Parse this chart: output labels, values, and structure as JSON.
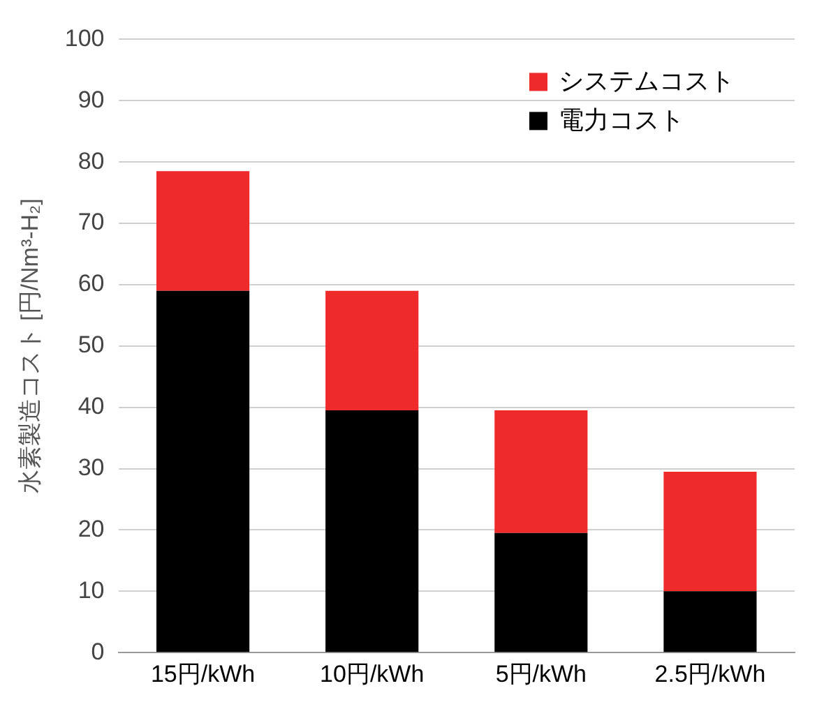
{
  "chart_data": {
    "type": "bar",
    "ylabel": "水素製造コスト [円/Nm³-H₂]",
    "categories": [
      "15円/kWh",
      "10円/kWh",
      "5円/kWh",
      "2.5円/kWh"
    ],
    "stacked": true,
    "series": [
      {
        "name": "電力コスト",
        "color": "#000000",
        "values": [
          59,
          39.5,
          19.5,
          10
        ]
      },
      {
        "name": "システムコスト",
        "color": "#ee2a2a",
        "values": [
          19.5,
          19.5,
          20,
          19.5
        ]
      }
    ],
    "ylim": [
      0,
      100
    ],
    "yticks": [
      0,
      10,
      20,
      30,
      40,
      50,
      60,
      70,
      80,
      90,
      100
    ],
    "grid": "y",
    "legend": "top right"
  }
}
